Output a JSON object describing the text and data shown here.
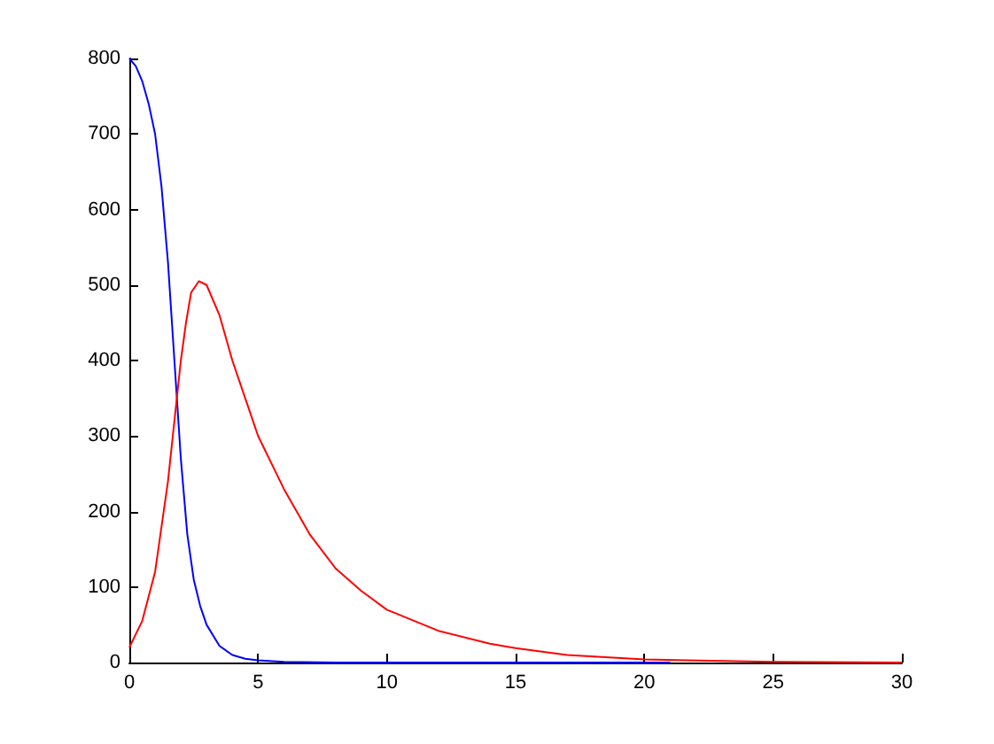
{
  "chart_data": {
    "type": "line",
    "xlim": [
      0,
      30
    ],
    "xticks": [
      0,
      5,
      10,
      15,
      20,
      25,
      30
    ],
    "ylim": [
      0,
      800
    ],
    "yticks": [
      0,
      100,
      200,
      300,
      400,
      500,
      600,
      700,
      800
    ],
    "grid": false,
    "marker": "none",
    "line_style": "solid",
    "series": [
      {
        "color": "#0000ff",
        "x": [
          0,
          0.25,
          0.5,
          0.75,
          1,
          1.25,
          1.5,
          1.75,
          2,
          2.25,
          2.5,
          2.75,
          3,
          3.5,
          4,
          4.5,
          5,
          6,
          8,
          12,
          16,
          21
        ],
        "values": [
          800,
          790,
          770,
          740,
          700,
          630,
          530,
          400,
          270,
          170,
          110,
          75,
          50,
          22,
          10,
          5,
          3,
          1,
          0,
          0,
          0,
          0
        ]
      },
      {
        "color": "#ff0000",
        "x": [
          0,
          0.5,
          1,
          1.5,
          2,
          2.2,
          2.4,
          2.7,
          3,
          3.5,
          4,
          4.5,
          5,
          6,
          7,
          8,
          9,
          10,
          12,
          14,
          15,
          17,
          20,
          25,
          30
        ],
        "values": [
          20,
          55,
          120,
          240,
          400,
          450,
          490,
          505,
          500,
          460,
          400,
          350,
          300,
          230,
          170,
          125,
          95,
          70,
          42,
          25,
          19,
          10,
          4,
          1,
          0
        ]
      }
    ]
  }
}
